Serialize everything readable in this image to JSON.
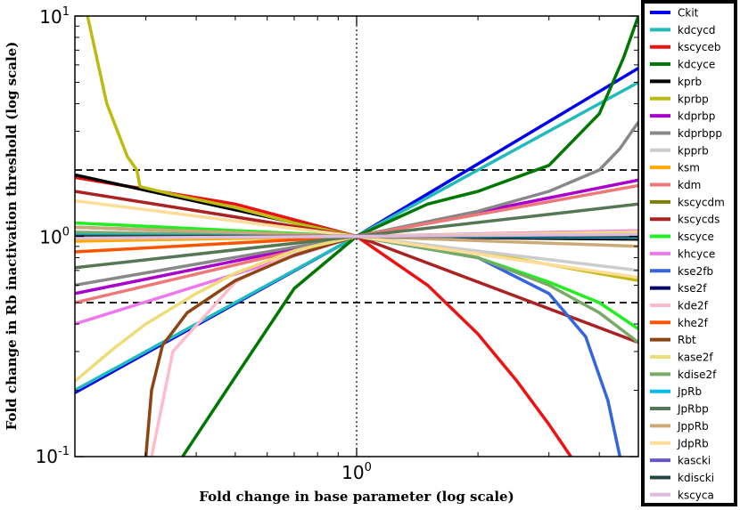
{
  "chart_data": {
    "type": "line",
    "xlabel": "Fold change in base parameter (log scale)",
    "ylabel": "Fold change in Rb inactivation threshold (log scale)",
    "x_scale": "log",
    "y_scale": "log",
    "xlim": [
      0.2,
      5
    ],
    "ylim": [
      0.1,
      10
    ],
    "x_ticks": [
      {
        "value": 1,
        "base": "10",
        "exp": "0"
      }
    ],
    "y_ticks": [
      {
        "value": 10,
        "base": "10",
        "exp": "1"
      },
      {
        "value": 1,
        "base": "10",
        "exp": "0"
      },
      {
        "value": 0.1,
        "base": "10",
        "exp": "-1"
      }
    ],
    "grid": false,
    "legend_position": "right-outside",
    "reference_lines": [
      {
        "axis": "y",
        "value": 2,
        "style": "dashed",
        "color": "#000000"
      },
      {
        "axis": "y",
        "value": 0.5,
        "style": "dashed",
        "color": "#000000"
      },
      {
        "axis": "y",
        "value": 1,
        "style": "dotted",
        "color": "#000000"
      },
      {
        "axis": "x",
        "value": 1,
        "style": "dotted",
        "color": "#000000"
      }
    ],
    "series": [
      {
        "name": "Ckit",
        "color": "#0000ee",
        "x": [
          0.2,
          1,
          5
        ],
        "y": [
          0.195,
          1,
          5.8
        ]
      },
      {
        "name": "kdcycd",
        "color": "#22bbbb",
        "x": [
          0.2,
          1,
          5
        ],
        "y": [
          0.2,
          1,
          5.0
        ]
      },
      {
        "name": "kscyceb",
        "color": "#ee1111",
        "x": [
          0.2,
          0.5,
          1,
          1.5,
          2,
          2.5,
          3,
          3.4
        ],
        "y": [
          1.85,
          1.4,
          1,
          0.6,
          0.36,
          0.22,
          0.14,
          0.1
        ]
      },
      {
        "name": "kdcyce",
        "color": "#007700",
        "x": [
          0.37,
          0.5,
          0.7,
          1,
          1.5,
          2,
          3,
          4,
          4.6,
          5
        ],
        "y": [
          0.1,
          0.23,
          0.58,
          1,
          1.4,
          1.6,
          2.1,
          3.6,
          6.5,
          10
        ]
      },
      {
        "name": "kprb",
        "color": "#000000",
        "x": [
          0.2,
          1,
          5
        ],
        "y": [
          1.9,
          1,
          0.97
        ]
      },
      {
        "name": "kprbp",
        "color": "#bbbb11",
        "x": [
          0.215,
          0.24,
          0.27,
          0.285,
          0.29,
          0.35,
          0.5,
          0.7,
          1,
          2,
          5
        ],
        "y": [
          10,
          4.0,
          2.3,
          2.0,
          1.68,
          1.55,
          1.35,
          1.15,
          1,
          0.85,
          0.63
        ]
      },
      {
        "name": "kdprbp",
        "color": "#aa00cc",
        "x": [
          0.2,
          1,
          5
        ],
        "y": [
          0.55,
          1,
          1.8
        ]
      },
      {
        "name": "kdprbpp",
        "color": "#888888",
        "x": [
          0.2,
          1,
          2,
          3,
          4,
          4.5,
          5
        ],
        "y": [
          0.6,
          1,
          1.3,
          1.6,
          2.0,
          2.5,
          3.3
        ]
      },
      {
        "name": "kpprb",
        "color": "#cccccc",
        "x": [
          0.2,
          1,
          5
        ],
        "y": [
          1.05,
          1,
          0.7
        ]
      },
      {
        "name": "ksm",
        "color": "#ffaa00",
        "x": [
          0.2,
          1,
          5
        ],
        "y": [
          0.95,
          1,
          1.06
        ]
      },
      {
        "name": "kdm",
        "color": "#ee7777",
        "x": [
          0.2,
          1,
          5
        ],
        "y": [
          0.5,
          1,
          1.7
        ]
      },
      {
        "name": "kscycdm",
        "color": "#808000",
        "x": [
          0.2,
          1,
          5
        ],
        "y": [
          1.0,
          1,
          1.0
        ]
      },
      {
        "name": "kscycds",
        "color": "#aa2222",
        "x": [
          0.2,
          1,
          5
        ],
        "y": [
          1.6,
          1,
          0.33
        ]
      },
      {
        "name": "kscyce",
        "color": "#22ee22",
        "x": [
          0.2,
          1,
          2,
          3,
          4,
          5
        ],
        "y": [
          1.15,
          1,
          0.8,
          0.62,
          0.5,
          0.38
        ]
      },
      {
        "name": "khcyce",
        "color": "#ee77ee",
        "x": [
          0.2,
          1,
          5
        ],
        "y": [
          0.4,
          1,
          1.06
        ]
      },
      {
        "name": "kse2fb",
        "color": "#3366dd",
        "x": [
          0.2,
          1,
          2,
          3,
          3.7,
          4.2,
          4.5
        ],
        "y": [
          1.1,
          1,
          0.8,
          0.55,
          0.35,
          0.18,
          0.1
        ]
      },
      {
        "name": "kse2f",
        "color": "#000066",
        "x": [
          0.2,
          1,
          5
        ],
        "y": [
          1.0,
          1,
          1.0
        ]
      },
      {
        "name": "kde2f",
        "color": "#ffbbcc",
        "x": [
          0.31,
          0.35,
          0.5,
          0.7,
          1,
          5
        ],
        "y": [
          0.1,
          0.3,
          0.62,
          0.85,
          1,
          1.05
        ]
      },
      {
        "name": "khe2f",
        "color": "#ff5500",
        "x": [
          0.2,
          1,
          5
        ],
        "y": [
          0.85,
          1,
          1.03
        ]
      },
      {
        "name": "Rbt",
        "color": "#8b4513",
        "x": [
          0.3,
          0.31,
          0.33,
          0.38,
          0.5,
          0.7,
          1
        ],
        "y": [
          0.1,
          0.2,
          0.32,
          0.45,
          0.63,
          0.82,
          1
        ]
      },
      {
        "name": "kase2f",
        "color": "#eedd77",
        "x": [
          0.2,
          0.25,
          0.3,
          0.4,
          0.5,
          0.7,
          1,
          5
        ],
        "y": [
          0.22,
          0.31,
          0.4,
          0.55,
          0.68,
          0.86,
          1,
          1.04
        ]
      },
      {
        "name": "kdise2f",
        "color": "#77aa66",
        "x": [
          0.2,
          1,
          2,
          3,
          4,
          5
        ],
        "y": [
          1.04,
          1,
          0.8,
          0.6,
          0.45,
          0.33
        ]
      },
      {
        "name": "JpRb",
        "color": "#00bbee",
        "x": [
          0.2,
          1,
          5
        ],
        "y": [
          1.01,
          1,
          0.99
        ]
      },
      {
        "name": "JpRbp",
        "color": "#557755",
        "x": [
          0.2,
          1,
          5
        ],
        "y": [
          0.72,
          1,
          1.4
        ]
      },
      {
        "name": "JppRb",
        "color": "#ccaa77",
        "x": [
          0.2,
          1,
          5
        ],
        "y": [
          1.1,
          1,
          0.9
        ]
      },
      {
        "name": "JdpRb",
        "color": "#ffdd99",
        "x": [
          0.2,
          1,
          5
        ],
        "y": [
          1.45,
          1,
          0.65
        ]
      },
      {
        "name": "kascki",
        "color": "#6655cc",
        "x": [
          0.2,
          1,
          5
        ],
        "y": [
          0.99,
          1,
          1.01
        ]
      },
      {
        "name": "kdiscki",
        "color": "#224444",
        "x": [
          0.2,
          1,
          5
        ],
        "y": [
          1.0,
          1,
          1.0
        ]
      },
      {
        "name": "kscyca",
        "color": "#ddbbdd",
        "x": [
          0.2,
          1,
          5
        ],
        "y": [
          0.98,
          1,
          1.02
        ]
      }
    ]
  }
}
